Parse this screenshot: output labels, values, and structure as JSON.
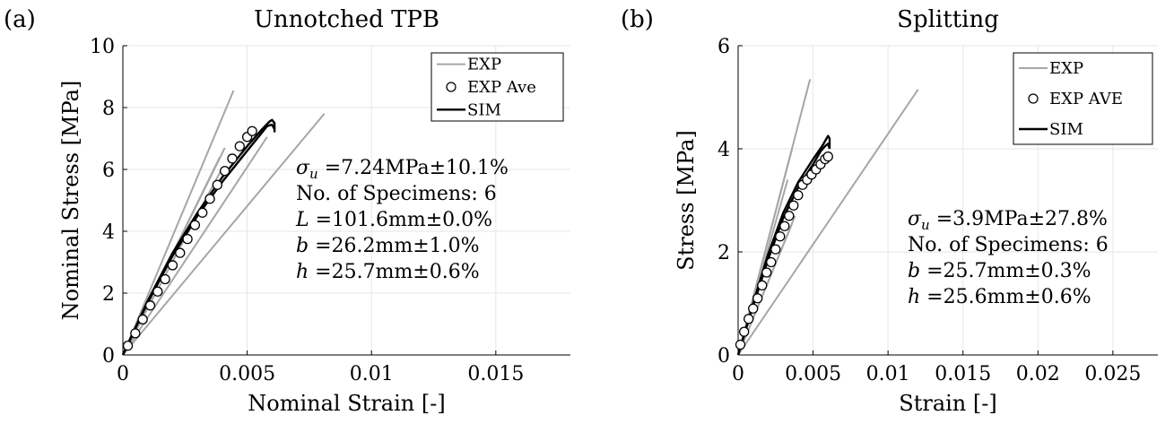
{
  "chart_data": [
    {
      "panel_label": "(a)",
      "type": "line",
      "title": "Unnotched TPB",
      "xlabel": "Nominal Strain [-]",
      "ylabel": "Nominal Stress [MPa]",
      "xlim": [
        0,
        0.018
      ],
      "ylim": [
        0,
        10
      ],
      "xticks": [
        0,
        0.005,
        0.01,
        0.015
      ],
      "xtick_labels": [
        "0",
        "0.005",
        "0.01",
        "0.015"
      ],
      "yticks": [
        0,
        2,
        4,
        6,
        8,
        10
      ],
      "ytick_labels": [
        "0",
        "2",
        "4",
        "6",
        "8",
        "10"
      ],
      "grid": true,
      "legend_position": "top-right",
      "legend": [
        {
          "label": "EXP",
          "style": "gray-line"
        },
        {
          "label": "EXP Ave",
          "style": "circle"
        },
        {
          "label": "SIM",
          "style": "black-line"
        }
      ],
      "annotations": [
        {
          "symbol": "σ",
          "sub": "u",
          "text": " =7.24MPa±10.1%"
        },
        {
          "text": "No. of Specimens: 6"
        },
        {
          "symbol": "L",
          "text": " =101.6mm±0.0%"
        },
        {
          "symbol": "b",
          "text": " =26.2mm±1.0%"
        },
        {
          "symbol": "h",
          "text": " =25.7mm±0.6%"
        }
      ],
      "series": [
        {
          "name": "EXP",
          "role": "exp",
          "x": [
            0,
            0.00445
          ],
          "y": [
            0,
            8.55
          ]
        },
        {
          "name": "EXP",
          "role": "exp",
          "x": [
            0,
            0.0041
          ],
          "y": [
            0,
            6.7
          ]
        },
        {
          "name": "EXP",
          "role": "exp",
          "x": [
            0,
            0.0039
          ],
          "y": [
            0,
            6.4
          ]
        },
        {
          "name": "EXP",
          "role": "exp",
          "x": [
            0,
            0.004
          ],
          "y": [
            0,
            6.05
          ]
        },
        {
          "name": "EXP",
          "role": "exp",
          "x": [
            0,
            0.0058
          ],
          "y": [
            0,
            7.05
          ]
        },
        {
          "name": "EXP",
          "role": "exp",
          "x": [
            0,
            0.0081
          ],
          "y": [
            0,
            7.8
          ]
        },
        {
          "name": "SIM",
          "role": "sim",
          "x": [
            0,
            0.001,
            0.002,
            0.003,
            0.004,
            0.005,
            0.0056,
            0.0059,
            0.006,
            0.0061,
            0.0061
          ],
          "y": [
            0,
            1.75,
            3.3,
            4.6,
            5.75,
            6.75,
            7.3,
            7.55,
            7.6,
            7.5,
            7.2
          ]
        },
        {
          "name": "SIM",
          "role": "sim",
          "x": [
            0,
            0.001,
            0.002,
            0.003,
            0.004,
            0.005,
            0.0055,
            0.0058,
            0.006,
            0.0061
          ],
          "y": [
            0,
            1.7,
            3.2,
            4.5,
            5.6,
            6.6,
            7.1,
            7.4,
            7.45,
            7.3
          ]
        },
        {
          "name": "EXP Ave",
          "role": "ave",
          "x": [
            0.0002,
            0.0005,
            0.0008,
            0.0011,
            0.0014,
            0.0017,
            0.002,
            0.0023,
            0.0026,
            0.0029,
            0.0032,
            0.0035,
            0.0038,
            0.0041,
            0.0044,
            0.0047,
            0.005,
            0.0052
          ],
          "y": [
            0.3,
            0.7,
            1.15,
            1.6,
            2.05,
            2.45,
            2.9,
            3.3,
            3.75,
            4.2,
            4.6,
            5.05,
            5.5,
            5.95,
            6.35,
            6.75,
            7.05,
            7.24
          ]
        }
      ]
    },
    {
      "panel_label": "(b)",
      "type": "line",
      "title": "Splitting",
      "xlabel": "Strain [-]",
      "ylabel": "Stress [MPa]",
      "xlim": [
        0,
        0.028
      ],
      "ylim": [
        0,
        6
      ],
      "xticks": [
        0,
        0.005,
        0.01,
        0.015,
        0.02,
        0.025
      ],
      "xtick_labels": [
        "0",
        "0.005",
        "0.01",
        "0.015",
        "0.02",
        "0.025"
      ],
      "yticks": [
        0,
        2,
        4,
        6
      ],
      "ytick_labels": [
        "0",
        "2",
        "4",
        "6"
      ],
      "grid": true,
      "legend_position": "top-right",
      "legend": [
        {
          "label": "EXP",
          "style": "gray-line"
        },
        {
          "label": "EXP AVE",
          "style": "circle"
        },
        {
          "label": "SIM",
          "style": "black-line"
        }
      ],
      "annotations": [
        {
          "symbol": "σ",
          "sub": "u",
          "text": " =3.9MPa±27.8%"
        },
        {
          "text": "No. of Specimens: 6"
        },
        {
          "symbol": "b",
          "text": " =25.7mm±0.3%"
        },
        {
          "symbol": "h",
          "text": " =25.6mm±0.6%"
        }
      ],
      "series": [
        {
          "name": "EXP",
          "role": "exp",
          "x": [
            0,
            0.0048
          ],
          "y": [
            0,
            5.35
          ]
        },
        {
          "name": "EXP",
          "role": "exp",
          "x": [
            0,
            0.0036
          ],
          "y": [
            0,
            4.0
          ]
        },
        {
          "name": "EXP",
          "role": "exp",
          "x": [
            0,
            0.0033
          ],
          "y": [
            0,
            3.4
          ]
        },
        {
          "name": "EXP",
          "role": "exp",
          "x": [
            0,
            0.0038
          ],
          "y": [
            0,
            2.7
          ]
        },
        {
          "name": "EXP",
          "role": "exp",
          "x": [
            0,
            0.0036
          ],
          "y": [
            0,
            2.55
          ]
        },
        {
          "name": "EXP",
          "role": "exp",
          "x": [
            0,
            0.012
          ],
          "y": [
            0,
            5.15
          ]
        },
        {
          "name": "SIM",
          "role": "sim",
          "x": [
            0,
            0.001,
            0.002,
            0.003,
            0.004,
            0.005,
            0.0056,
            0.0059,
            0.006,
            0.0061,
            0.0061
          ],
          "y": [
            0,
            1.0,
            1.95,
            2.75,
            3.35,
            3.8,
            4.05,
            4.2,
            4.25,
            4.2,
            4.0
          ]
        },
        {
          "name": "SIM",
          "role": "sim",
          "x": [
            0,
            0.001,
            0.002,
            0.003,
            0.004,
            0.005,
            0.0055,
            0.0058,
            0.006,
            0.0061
          ],
          "y": [
            0,
            0.95,
            1.85,
            2.65,
            3.25,
            3.7,
            3.95,
            4.05,
            4.1,
            4.0
          ]
        },
        {
          "name": "EXP AVE",
          "role": "ave",
          "x": [
            0.00015,
            0.0004,
            0.0007,
            0.001,
            0.0013,
            0.0016,
            0.0019,
            0.0022,
            0.0025,
            0.0028,
            0.0031,
            0.0034,
            0.0037,
            0.004,
            0.0043,
            0.0046,
            0.0049,
            0.0052,
            0.0055,
            0.0058,
            0.006
          ],
          "y": [
            0.2,
            0.45,
            0.7,
            0.9,
            1.1,
            1.35,
            1.6,
            1.8,
            2.05,
            2.3,
            2.5,
            2.7,
            2.9,
            3.1,
            3.3,
            3.4,
            3.5,
            3.6,
            3.7,
            3.8,
            3.85
          ]
        }
      ]
    }
  ]
}
